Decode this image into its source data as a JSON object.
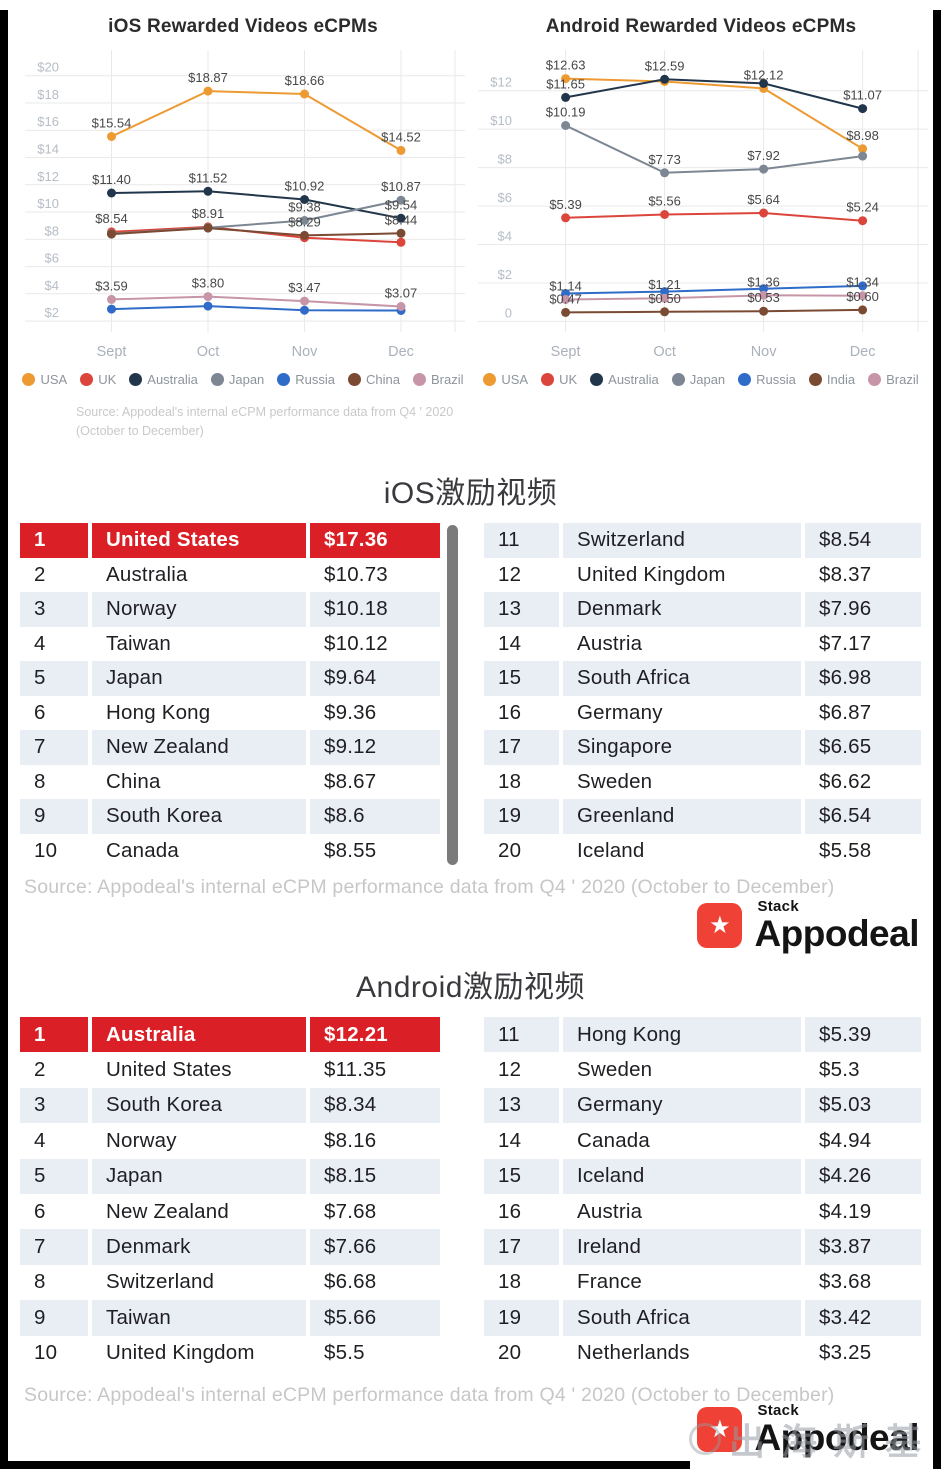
{
  "colors": {
    "highlight_red": "#DA2026",
    "row_alt": "#E9EDF4",
    "logo_red": "#EF4136",
    "scrollbar_gray": "#7B7B7B"
  },
  "chart_data": [
    {
      "type": "line",
      "title": "iOS Rewarded Videos eCPMs",
      "x": [
        "Sept",
        "Oct",
        "Nov",
        "Dec"
      ],
      "ylim": [
        1.2,
        21.3
      ],
      "grid": true,
      "legend_position": "bottom",
      "yticks": [
        {
          "value": 20,
          "label": "$20"
        },
        {
          "value": 18,
          "label": "$18"
        },
        {
          "value": 16,
          "label": "$16"
        },
        {
          "value": 14,
          "label": "$14"
        },
        {
          "value": 12,
          "label": "$12"
        },
        {
          "value": 10,
          "label": "$10"
        },
        {
          "value": 8,
          "label": "$8"
        },
        {
          "value": 6,
          "label": "$6"
        },
        {
          "value": 4,
          "label": "$4"
        },
        {
          "value": 2,
          "label": "$2"
        }
      ],
      "series": [
        {
          "name": "USA",
          "color": "#ED9A33",
          "values": [
            15.54,
            18.87,
            18.66,
            14.52
          ],
          "labels": [
            "$15.54",
            "$18.87",
            "$18.66",
            "$14.52"
          ]
        },
        {
          "name": "UK",
          "color": "#DB453C",
          "values": [
            8.54,
            8.91,
            8.12,
            7.78
          ],
          "labels": [
            "$8.54",
            "$8.91",
            null,
            null
          ]
        },
        {
          "name": "Australia",
          "color": "#22364B",
          "values": [
            11.4,
            11.52,
            10.92,
            9.54
          ],
          "labels": [
            "$11.40",
            "$11.52",
            "$10.92",
            "$9.54"
          ]
        },
        {
          "name": "Japan",
          "color": "#7D8793",
          "values": [
            8.42,
            8.85,
            9.38,
            10.87
          ],
          "labels": [
            null,
            null,
            "$9.38",
            "$10.87"
          ]
        },
        {
          "name": "Russia",
          "color": "#2F6BC9",
          "values": [
            2.88,
            3.1,
            2.8,
            2.78
          ],
          "labels": [
            null,
            null,
            null,
            null
          ]
        },
        {
          "name": "China",
          "color": "#7A4A33",
          "values": [
            8.38,
            8.82,
            8.29,
            8.44
          ],
          "labels": [
            null,
            null,
            "$8.29",
            "$8.44"
          ]
        },
        {
          "name": "Brazil",
          "color": "#C795A8",
          "values": [
            3.59,
            3.8,
            3.47,
            3.07
          ],
          "labels": [
            "$3.59",
            "$3.80",
            "$3.47",
            "$3.07"
          ]
        }
      ],
      "source": "Source: Appodeal's internal eCPM performance data from Q4 ' 2020 (October to December)"
    },
    {
      "type": "line",
      "title": "Android Rewarded Videos eCPMs",
      "x": [
        "Sept",
        "Oct",
        "Nov",
        "Dec"
      ],
      "ylim": [
        -0.55,
        13.7
      ],
      "grid": true,
      "legend_position": "bottom",
      "yticks": [
        {
          "value": 12,
          "label": "$12"
        },
        {
          "value": 10,
          "label": "$10"
        },
        {
          "value": 8,
          "label": "$8"
        },
        {
          "value": 6,
          "label": "$6"
        },
        {
          "value": 4,
          "label": "$4"
        },
        {
          "value": 2,
          "label": "$2"
        },
        {
          "value": 0,
          "label": "0"
        }
      ],
      "series": [
        {
          "name": "USA",
          "color": "#ED9A33",
          "values": [
            12.63,
            12.48,
            12.12,
            8.98
          ],
          "labels": [
            "$12.63",
            null,
            "$12.12",
            "$8.98"
          ]
        },
        {
          "name": "UK",
          "color": "#DB453C",
          "values": [
            5.39,
            5.56,
            5.64,
            5.24
          ],
          "labels": [
            "$5.39",
            "$5.56",
            "$5.64",
            "$5.24"
          ]
        },
        {
          "name": "Australia",
          "color": "#22364B",
          "values": [
            11.65,
            12.59,
            12.38,
            11.07
          ],
          "labels": [
            "$11.65",
            "$12.59",
            null,
            "$11.07"
          ]
        },
        {
          "name": "Japan",
          "color": "#7D8793",
          "values": [
            10.19,
            7.73,
            7.92,
            8.6
          ],
          "labels": [
            "$10.19",
            "$7.73",
            "$7.92",
            null
          ]
        },
        {
          "name": "Russia",
          "color": "#2F6BC9",
          "values": [
            1.45,
            1.55,
            1.7,
            1.85
          ],
          "labels": [
            null,
            null,
            null,
            null
          ]
        },
        {
          "name": "India",
          "color": "#7A4A33",
          "values": [
            0.47,
            0.5,
            0.53,
            0.6
          ],
          "labels": [
            "$0.47",
            "$0.50",
            "$0.53",
            "$0.60"
          ]
        },
        {
          "name": "Brazil",
          "color": "#C795A8",
          "values": [
            1.14,
            1.21,
            1.36,
            1.34
          ],
          "labels": [
            "$1.14",
            "$1.21",
            "$1.36",
            "$1.34"
          ]
        }
      ]
    }
  ],
  "ios_table": {
    "title": "iOS激励视频",
    "left_rows": [
      {
        "rank": "1",
        "country": "United States",
        "value": "$17.36",
        "highlight": true
      },
      {
        "rank": "2",
        "country": "Australia",
        "value": "$10.73"
      },
      {
        "rank": "3",
        "country": "Norway",
        "value": "$10.18"
      },
      {
        "rank": "4",
        "country": "Taiwan",
        "value": "$10.12"
      },
      {
        "rank": "5",
        "country": "Japan",
        "value": "$9.64"
      },
      {
        "rank": "6",
        "country": "Hong Kong",
        "value": "$9.36"
      },
      {
        "rank": "7",
        "country": "New Zealand",
        "value": "$9.12"
      },
      {
        "rank": "8",
        "country": "China",
        "value": "$8.67"
      },
      {
        "rank": "9",
        "country": "South Korea",
        "value": "$8.6"
      },
      {
        "rank": "10",
        "country": "Canada",
        "value": "$8.55"
      }
    ],
    "right_rows": [
      {
        "rank": "11",
        "country": "Switzerland",
        "value": "$8.54"
      },
      {
        "rank": "12",
        "country": "United Kingdom",
        "value": "$8.37"
      },
      {
        "rank": "13",
        "country": "Denmark",
        "value": "$7.96"
      },
      {
        "rank": "14",
        "country": "Austria",
        "value": "$7.17"
      },
      {
        "rank": "15",
        "country": "South Africa",
        "value": "$6.98"
      },
      {
        "rank": "16",
        "country": "Germany",
        "value": "$6.87"
      },
      {
        "rank": "17",
        "country": "Singapore",
        "value": "$6.65"
      },
      {
        "rank": "18",
        "country": "Sweden",
        "value": "$6.62"
      },
      {
        "rank": "19",
        "country": "Greenland",
        "value": "$6.54"
      },
      {
        "rank": "20",
        "country": "Iceland",
        "value": "$5.58"
      }
    ]
  },
  "android_table": {
    "title": "Android激励视频",
    "left_rows": [
      {
        "rank": "1",
        "country": "Australia",
        "value": "$12.21",
        "highlight": true
      },
      {
        "rank": "2",
        "country": "United States",
        "value": "$11.35"
      },
      {
        "rank": "3",
        "country": "South Korea",
        "value": "$8.34"
      },
      {
        "rank": "4",
        "country": "Norway",
        "value": "$8.16"
      },
      {
        "rank": "5",
        "country": "Japan",
        "value": "$8.15"
      },
      {
        "rank": "6",
        "country": "New Zealand",
        "value": "$7.68"
      },
      {
        "rank": "7",
        "country": "Denmark",
        "value": "$7.66"
      },
      {
        "rank": "8",
        "country": "Switzerland",
        "value": "$6.68"
      },
      {
        "rank": "9",
        "country": "Taiwan",
        "value": "$5.66"
      },
      {
        "rank": "10",
        "country": "United Kingdom",
        "value": "$5.5"
      }
    ],
    "right_rows": [
      {
        "rank": "11",
        "country": "Hong Kong",
        "value": "$5.39"
      },
      {
        "rank": "12",
        "country": "Sweden",
        "value": "$5.3"
      },
      {
        "rank": "13",
        "country": "Germany",
        "value": "$5.03"
      },
      {
        "rank": "14",
        "country": "Canada",
        "value": "$4.94"
      },
      {
        "rank": "15",
        "country": "Iceland",
        "value": "$4.26"
      },
      {
        "rank": "16",
        "country": "Austria",
        "value": "$4.19"
      },
      {
        "rank": "17",
        "country": "Ireland",
        "value": "$3.87"
      },
      {
        "rank": "18",
        "country": "France",
        "value": "$3.68"
      },
      {
        "rank": "19",
        "country": "South Africa",
        "value": "$3.42"
      },
      {
        "rank": "20",
        "country": "Netherlands",
        "value": "$3.25"
      }
    ]
  },
  "footer": {
    "source": "Source: Appodeal's internal eCPM performance data from Q4 ' 2020 (October to December)",
    "logo": {
      "stack": "Stack",
      "name": "Appodeal",
      "star": "★"
    },
    "watermark": "出海斯基"
  }
}
